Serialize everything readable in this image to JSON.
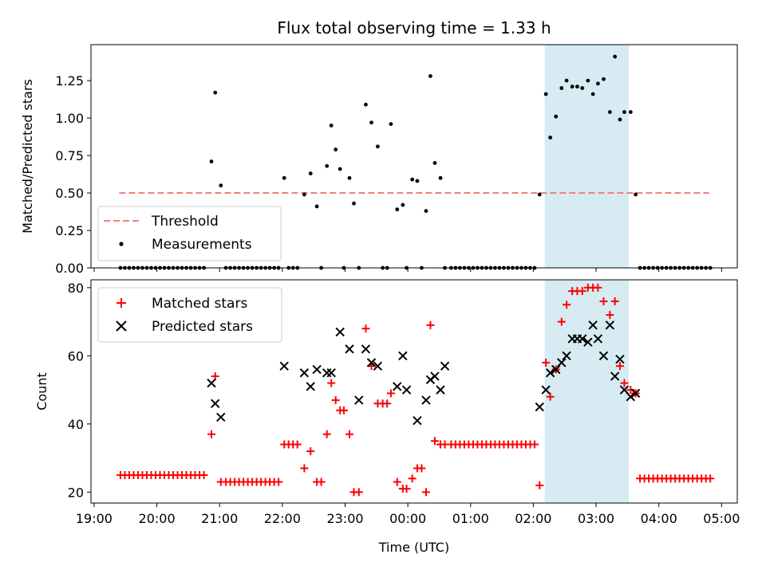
{
  "title": "Flux total observing time = 1.33 h",
  "colors": {
    "threshold": "#f08080",
    "measurement": "#000000",
    "matched": "#ff0000",
    "predicted": "#000000",
    "highlight": "#add8e6"
  },
  "chart_data": [
    {
      "type": "scatter",
      "ylabel": "Matched/Predicted stars",
      "ylim": [
        0,
        1.49
      ],
      "yticks": [
        0.0,
        0.25,
        0.5,
        0.75,
        1.0,
        1.25
      ],
      "ytick_labels": [
        "0.00",
        "0.25",
        "0.50",
        "0.75",
        "1.00",
        "1.25"
      ],
      "xlim_hours": [
        18.95,
        29.25
      ],
      "highlight_span_hours": [
        26.18,
        27.52
      ],
      "threshold": {
        "y": 0.5,
        "x_range_hours": [
          19.4,
          28.8
        ]
      },
      "legend": {
        "placement": "lower-left",
        "entries": [
          "Threshold",
          "Measurements"
        ]
      },
      "series": [
        {
          "name": "Measurements",
          "x_hours": [
            19.42,
            19.49,
            19.56,
            19.63,
            19.7,
            19.77,
            19.84,
            19.91,
            19.98,
            20.05,
            20.12,
            20.19,
            20.26,
            20.33,
            20.4,
            20.47,
            20.54,
            20.61,
            20.68,
            20.75,
            20.87,
            20.93,
            21.02,
            21.1,
            21.17,
            21.24,
            21.31,
            21.38,
            21.45,
            21.52,
            21.59,
            21.66,
            21.73,
            21.8,
            21.87,
            21.94,
            22.03,
            22.1,
            22.17,
            22.24,
            22.35,
            22.45,
            22.55,
            22.62,
            22.71,
            22.78,
            22.85,
            22.92,
            22.98,
            23.07,
            23.14,
            23.22,
            23.33,
            23.42,
            23.52,
            23.6,
            23.67,
            23.73,
            23.83,
            23.92,
            23.98,
            24.07,
            24.15,
            24.22,
            24.29,
            24.36,
            24.43,
            24.52,
            24.59,
            24.69,
            24.76,
            24.83,
            24.9,
            24.97,
            25.04,
            25.11,
            25.18,
            25.25,
            25.32,
            25.39,
            25.46,
            25.53,
            25.6,
            25.67,
            25.74,
            25.81,
            25.88,
            25.95,
            26.02,
            26.1,
            26.2,
            26.27,
            26.36,
            26.45,
            26.53,
            26.62,
            26.7,
            26.78,
            26.87,
            26.95,
            27.03,
            27.12,
            27.22,
            27.3,
            27.38,
            27.45,
            27.55,
            27.63,
            27.7,
            27.77,
            27.84,
            27.91,
            27.98,
            28.05,
            28.12,
            28.19,
            28.26,
            28.33,
            28.4,
            28.47,
            28.54,
            28.61,
            28.68,
            28.75,
            28.82
          ],
          "y": [
            0,
            0,
            0,
            0,
            0,
            0,
            0,
            0,
            0,
            0,
            0,
            0,
            0,
            0,
            0,
            0,
            0,
            0,
            0,
            0,
            0.71,
            1.17,
            0.55,
            0,
            0,
            0,
            0,
            0,
            0,
            0,
            0,
            0,
            0,
            0,
            0,
            0,
            0.6,
            0,
            0,
            0,
            0.49,
            0.63,
            0.41,
            0,
            0.68,
            0.95,
            0.79,
            0.66,
            0,
            0.6,
            0.43,
            0,
            1.09,
            0.97,
            0.81,
            0,
            0,
            0.96,
            0.39,
            0.42,
            0,
            0.59,
            0.58,
            0,
            0.38,
            1.28,
            0.7,
            0.6,
            0,
            0,
            0,
            0,
            0,
            0,
            0,
            0,
            0,
            0,
            0,
            0,
            0,
            0,
            0,
            0,
            0,
            0,
            0,
            0,
            0,
            0.49,
            1.16,
            0.87,
            1.01,
            1.2,
            1.25,
            1.21,
            1.21,
            1.2,
            1.25,
            1.16,
            1.23,
            1.26,
            1.04,
            1.41,
            0.99,
            1.04,
            1.04,
            0.49,
            0,
            0,
            0,
            0,
            0,
            0,
            0,
            0,
            0,
            0,
            0,
            0,
            0,
            0,
            0,
            0,
            0
          ]
        }
      ]
    },
    {
      "type": "scatter",
      "ylabel": "Count",
      "xlabel": "Time (UTC)",
      "ylim": [
        16.8,
        82.3
      ],
      "yticks": [
        20,
        40,
        60,
        80
      ],
      "ytick_labels": [
        "20",
        "40",
        "60",
        "80"
      ],
      "xlim_hours": [
        18.95,
        29.25
      ],
      "xticks_hours": [
        19,
        20,
        21,
        22,
        23,
        24,
        25,
        26,
        27,
        28,
        29
      ],
      "xtick_labels": [
        "19:00",
        "20:00",
        "21:00",
        "22:00",
        "23:00",
        "00:00",
        "01:00",
        "02:00",
        "03:00",
        "04:00",
        "05:00"
      ],
      "highlight_span_hours": [
        26.18,
        27.52
      ],
      "legend": {
        "placement": "upper-left",
        "entries": [
          "Matched stars",
          "Predicted stars"
        ]
      },
      "series": [
        {
          "name": "Matched stars",
          "marker": "plus",
          "x_hours": [
            19.42,
            19.49,
            19.56,
            19.63,
            19.7,
            19.77,
            19.84,
            19.91,
            19.98,
            20.05,
            20.12,
            20.19,
            20.26,
            20.33,
            20.4,
            20.47,
            20.54,
            20.61,
            20.68,
            20.75,
            20.87,
            20.93,
            21.02,
            21.1,
            21.17,
            21.24,
            21.31,
            21.38,
            21.45,
            21.52,
            21.59,
            21.66,
            21.73,
            21.8,
            21.87,
            21.94,
            22.03,
            22.1,
            22.17,
            22.24,
            22.35,
            22.45,
            22.55,
            22.62,
            22.71,
            22.78,
            22.85,
            22.92,
            22.98,
            23.07,
            23.14,
            23.22,
            23.33,
            23.42,
            23.52,
            23.6,
            23.67,
            23.73,
            23.83,
            23.92,
            23.98,
            24.07,
            24.15,
            24.22,
            24.29,
            24.36,
            24.43,
            24.52,
            24.59,
            24.69,
            24.76,
            24.83,
            24.9,
            24.97,
            25.04,
            25.11,
            25.18,
            25.25,
            25.32,
            25.39,
            25.46,
            25.53,
            25.6,
            25.67,
            25.74,
            25.81,
            25.88,
            25.95,
            26.02,
            26.1,
            26.2,
            26.27,
            26.36,
            26.45,
            26.53,
            26.62,
            26.7,
            26.78,
            26.87,
            26.95,
            27.03,
            27.12,
            27.22,
            27.3,
            27.38,
            27.45,
            27.55,
            27.63,
            27.7,
            27.77,
            27.84,
            27.91,
            27.98,
            28.05,
            28.12,
            28.19,
            28.26,
            28.33,
            28.4,
            28.47,
            28.54,
            28.61,
            28.68,
            28.75,
            28.82
          ],
          "y": [
            25,
            25,
            25,
            25,
            25,
            25,
            25,
            25,
            25,
            25,
            25,
            25,
            25,
            25,
            25,
            25,
            25,
            25,
            25,
            25,
            37,
            54,
            23,
            23,
            23,
            23,
            23,
            23,
            23,
            23,
            23,
            23,
            23,
            23,
            23,
            23,
            34,
            34,
            34,
            34,
            27,
            32,
            23,
            23,
            37,
            52,
            47,
            44,
            44,
            37,
            20,
            20,
            68,
            57,
            46,
            46,
            46,
            49,
            23,
            21,
            21,
            24,
            27,
            27,
            20,
            69,
            35,
            34,
            34,
            34,
            34,
            34,
            34,
            34,
            34,
            34,
            34,
            34,
            34,
            34,
            34,
            34,
            34,
            34,
            34,
            34,
            34,
            34,
            34,
            22,
            58,
            48,
            56,
            70,
            75,
            79,
            79,
            79,
            80,
            80,
            80,
            76,
            72,
            76,
            57,
            52,
            50,
            49,
            24,
            24,
            24,
            24,
            24,
            24,
            24,
            24,
            24,
            24,
            24,
            24,
            24,
            24,
            24,
            24,
            24
          ]
        },
        {
          "name": "Predicted stars",
          "marker": "cross",
          "x_hours": [
            20.87,
            20.93,
            21.02,
            22.03,
            22.35,
            22.45,
            22.55,
            22.71,
            22.78,
            22.92,
            23.07,
            23.22,
            23.33,
            23.42,
            23.52,
            23.83,
            23.92,
            23.98,
            24.15,
            24.29,
            24.36,
            24.43,
            24.52,
            24.59,
            26.1,
            26.2,
            26.27,
            26.36,
            26.45,
            26.53,
            26.62,
            26.7,
            26.78,
            26.87,
            26.95,
            27.03,
            27.12,
            27.22,
            27.3,
            27.38,
            27.45,
            27.55,
            27.63
          ],
          "y": [
            52,
            46,
            42,
            57,
            55,
            51,
            56,
            55,
            55,
            67,
            62,
            47,
            62,
            58,
            57,
            51,
            60,
            50,
            41,
            47,
            53,
            54,
            50,
            57,
            45,
            50,
            55,
            56,
            58,
            60,
            65,
            65,
            65,
            64,
            69,
            65,
            60,
            69,
            54,
            59,
            50,
            48,
            49
          ]
        }
      ]
    }
  ]
}
